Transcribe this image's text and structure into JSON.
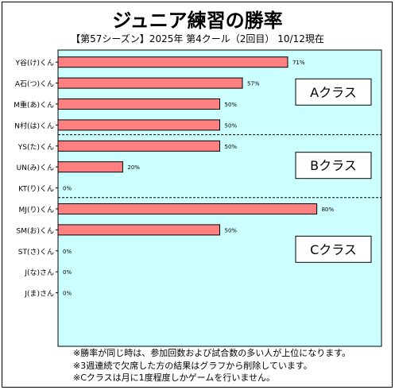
{
  "title": "ジュニア練習の勝率",
  "subtitle": "【第57シーズン】2025年 第4クール（2回目） 10/12現在",
  "notes": [
    "※勝率が同じ時は、参加回数および試合数の多い人が上位になります。",
    "※3週連続で欠席した方の結果はグラフから削除しています。",
    "※Cクラスは月に1度程度しかゲームを行いません。"
  ],
  "colors": {
    "plot_bg": "#ccffff",
    "bar_fill": "#ff8080",
    "bar_stroke": "#000000"
  },
  "chart_data": {
    "type": "bar",
    "orientation": "horizontal",
    "categories": [
      "Y谷(け)くん",
      "A石(つ)くん",
      "M重(あ)くん",
      "N村(は)くん",
      "YS(た)くん",
      "UN(み)くん",
      "KT(り)くん",
      "MJ(り)くん",
      "SM(お)くん",
      "ST(さ)くん",
      "J(な)さん",
      "J(ま)さん"
    ],
    "values": [
      71,
      57,
      50,
      50,
      50,
      20,
      0,
      80,
      50,
      0,
      0,
      0
    ],
    "value_labels": [
      "71%",
      "57%",
      "50%",
      "50%",
      "50%",
      "20%",
      "0%",
      "80%",
      "50%",
      "0%",
      "0%",
      "0%"
    ],
    "xlim": [
      0,
      100
    ],
    "groups": [
      {
        "label": "Aクラス",
        "count": 4
      },
      {
        "label": "Bクラス",
        "count": 3
      },
      {
        "label": "Cクラス",
        "count": 5
      }
    ]
  }
}
